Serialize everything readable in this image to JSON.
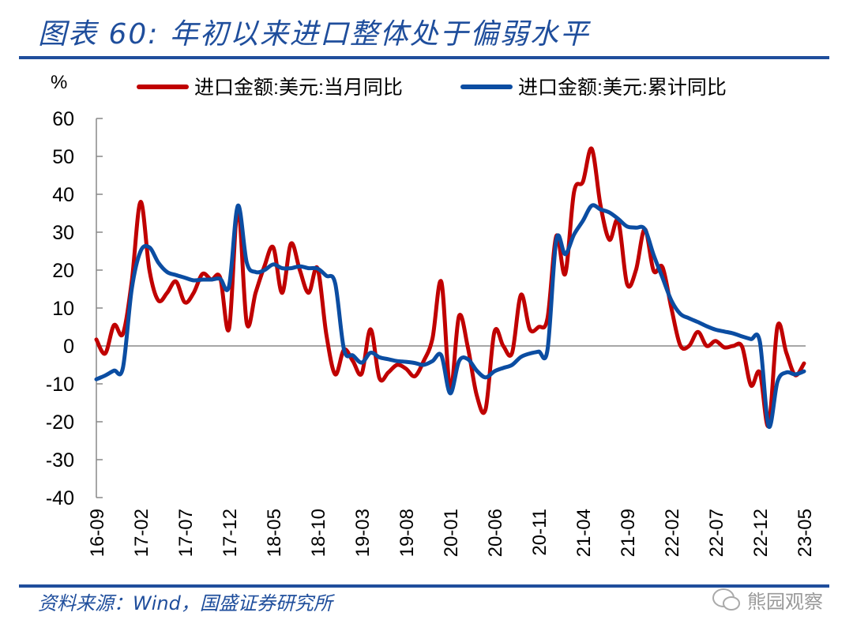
{
  "title": "图表 60:  年初以来进口整体处于偏弱水平",
  "source": "资料来源：Wind，国盛证券研究所",
  "watermark": "熊园观察",
  "colors": {
    "red": "#C00000",
    "blue": "#0B4DA2",
    "title": "#1F4E9C"
  },
  "chart_data": {
    "type": "line",
    "ylabel": "%",
    "ylim": [
      -40,
      60
    ],
    "yticks": [
      60,
      50,
      40,
      30,
      20,
      10,
      0,
      -10,
      -20,
      -30,
      -40
    ],
    "x_start": "16-09",
    "x_end": "23-05",
    "xtick_labels": [
      "16-09",
      "17-02",
      "17-07",
      "17-12",
      "18-05",
      "18-10",
      "19-03",
      "19-08",
      "20-01",
      "20-06",
      "20-11",
      "21-04",
      "21-09",
      "22-02",
      "22-07",
      "22-12",
      "23-05"
    ],
    "legend_position": "top",
    "series": [
      {
        "name": "进口金额:美元:当月同比",
        "color": "#C00000",
        "values": [
          1.7,
          -2,
          5.5,
          3.2,
          17,
          38,
          20,
          12,
          14,
          17,
          11.5,
          14,
          19,
          17.5,
          18,
          4.5,
          36.5,
          6,
          14,
          21,
          26,
          14,
          27,
          20,
          14,
          20.5,
          3,
          -7.5,
          -1,
          -4,
          -7.3,
          4.4,
          -8.5,
          -7,
          -5,
          -6,
          -8,
          -4,
          2,
          16.9,
          -11.5,
          7.9,
          -0.4,
          -13,
          -16.7,
          3.7,
          0,
          -1.8,
          13.5,
          4.4,
          5,
          7.3,
          29,
          19,
          40.6,
          43.3,
          52,
          37,
          28,
          33,
          16.3,
          20,
          30.8,
          19.8,
          20.8,
          10,
          0.2,
          0,
          3.7,
          0,
          1.3,
          -0.4,
          0,
          -0.2,
          -10.4,
          -7,
          -21,
          5.2,
          -1.8,
          -7.7,
          -4.6
        ]
      },
      {
        "name": "进口金额:美元:累计同比",
        "color": "#0B4DA2",
        "values": [
          -8.8,
          -7.8,
          -6.5,
          -5.8,
          15,
          25,
          26,
          22,
          19.5,
          18.7,
          18,
          17.3,
          17.5,
          17.5,
          17.7,
          15.8,
          37,
          22,
          19.5,
          20,
          21.5,
          20.5,
          20.5,
          21,
          20.5,
          20.4,
          18.5,
          16.5,
          -1,
          -2.5,
          -4.4,
          -1.8,
          -3,
          -3.5,
          -4,
          -4.2,
          -4.5,
          -5,
          -4,
          -2.5,
          -12.5,
          -4,
          -3.5,
          -6.5,
          -8.3,
          -6.7,
          -5.8,
          -5,
          -2.9,
          -2,
          -1.5,
          -1,
          28,
          24.2,
          29.4,
          33,
          37,
          36,
          35.2,
          33.5,
          31.5,
          31.2,
          30.8,
          24,
          18,
          12,
          8.5,
          7.3,
          6.3,
          5.2,
          4.3,
          3.8,
          3.3,
          2.5,
          1.8,
          1.2,
          -21.2,
          -9.4,
          -7,
          -7.5,
          -6.7
        ]
      }
    ]
  }
}
